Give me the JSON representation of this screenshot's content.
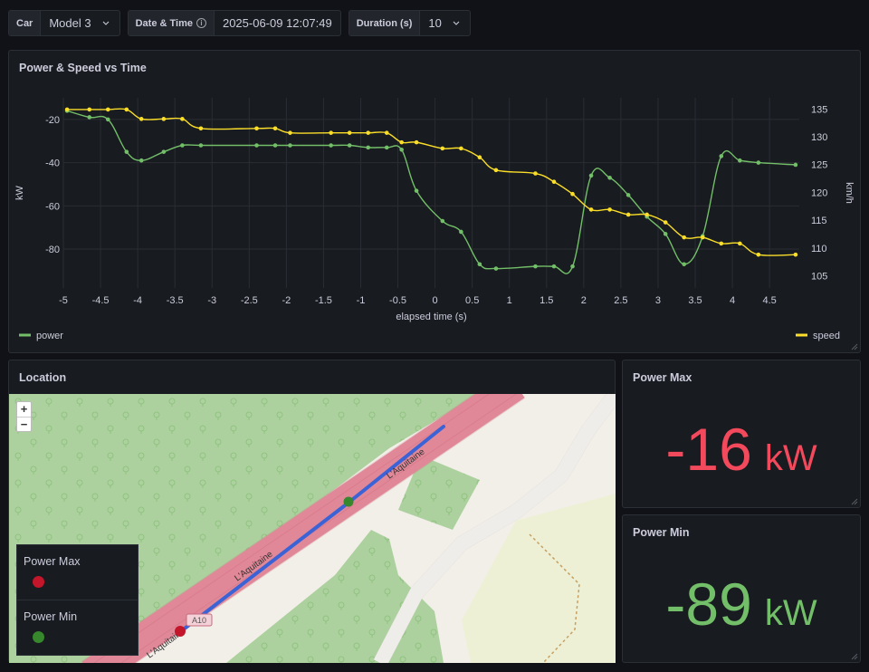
{
  "variables": {
    "car": {
      "label": "Car",
      "value": "Model 3"
    },
    "datetime": {
      "label": "Date & Time",
      "value": "2025-06-09 12:07:49"
    },
    "duration": {
      "label": "Duration (s)",
      "value": "10"
    }
  },
  "chart_panel": {
    "title": "Power & Speed vs Time"
  },
  "chart_data": {
    "type": "line",
    "xlabel": "elapsed time (s)",
    "ylabel": "kW",
    "y2label": "km/h",
    "xlim": [
      -5,
      4.9
    ],
    "ylim": [
      -98,
      -10
    ],
    "y2lim": [
      102.8,
      137
    ],
    "x_ticks": [
      -5,
      -4.5,
      -4,
      -3.5,
      -3,
      -2.5,
      -2,
      -1.5,
      -1,
      -0.5,
      0,
      0.5,
      1,
      1.5,
      2,
      2.5,
      3,
      3.5,
      4,
      4.5
    ],
    "y_ticks": [
      -20,
      -40,
      -60,
      -80
    ],
    "y2_ticks": [
      135,
      130,
      125,
      120,
      115,
      110,
      105
    ],
    "legend": "bottom",
    "series": [
      {
        "name": "power",
        "color": "#73bf69",
        "axis": "left",
        "x": [
          -4.95,
          -4.65,
          -4.4,
          -4.15,
          -3.95,
          -3.65,
          -3.4,
          -3.15,
          -2.4,
          -2.15,
          -1.95,
          -1.4,
          -1.15,
          -0.9,
          -0.65,
          -0.45,
          -0.25,
          0.1,
          0.35,
          0.6,
          0.82,
          1.35,
          1.6,
          1.85,
          2.1,
          2.35,
          2.6,
          2.85,
          3.1,
          3.35,
          3.6,
          3.85,
          4.1,
          4.35,
          4.85
        ],
        "y": [
          -16,
          -19,
          -20,
          -35,
          -39,
          -35,
          -32,
          -32,
          -32,
          -32,
          -32,
          -32,
          -32,
          -33,
          -33,
          -34,
          -53,
          -67,
          -72,
          -87,
          -89,
          -88,
          -88,
          -88,
          -46,
          -47,
          -55,
          -65,
          -73,
          -87,
          -74,
          -37,
          -39,
          -40,
          -41
        ]
      },
      {
        "name": "speed",
        "color": "#fade2a",
        "axis": "right",
        "x": [
          -4.95,
          -4.65,
          -4.4,
          -4.15,
          -3.95,
          -3.65,
          -3.4,
          -3.15,
          -2.4,
          -2.15,
          -1.95,
          -1.4,
          -1.15,
          -0.9,
          -0.65,
          -0.45,
          -0.25,
          0.1,
          0.35,
          0.6,
          0.82,
          1.35,
          1.6,
          1.85,
          2.1,
          2.35,
          2.6,
          2.85,
          3.1,
          3.35,
          3.6,
          3.85,
          4.1,
          4.35,
          4.85
        ],
        "y": [
          134.9,
          134.9,
          134.9,
          134.9,
          133.2,
          133.2,
          133.2,
          131.5,
          131.5,
          131.5,
          130.7,
          130.7,
          130.7,
          130.7,
          130.7,
          129.0,
          129.0,
          127.9,
          127.9,
          126.3,
          124.0,
          123.4,
          121.9,
          119.7,
          116.9,
          116.9,
          116.0,
          116.0,
          114.6,
          111.9,
          111.9,
          110.8,
          110.8,
          108.8,
          108.8
        ]
      }
    ]
  },
  "map_panel": {
    "title": "Location",
    "zoom_in": "+",
    "zoom_out": "−",
    "road_labels": [
      "L'Aquitaine",
      "L'Aquitaine",
      "L'Aquitaine"
    ],
    "route_shield": "A10",
    "legend": [
      {
        "label": "Power Max",
        "color": "#c4162a"
      },
      {
        "label": "Power Min",
        "color": "#37872d"
      }
    ]
  },
  "power_max": {
    "title": "Power Max",
    "value": "-16",
    "unit": "kW",
    "color": "#f2495c"
  },
  "power_min": {
    "title": "Power Min",
    "value": "-89",
    "unit": "kW",
    "color": "#73bf69"
  }
}
